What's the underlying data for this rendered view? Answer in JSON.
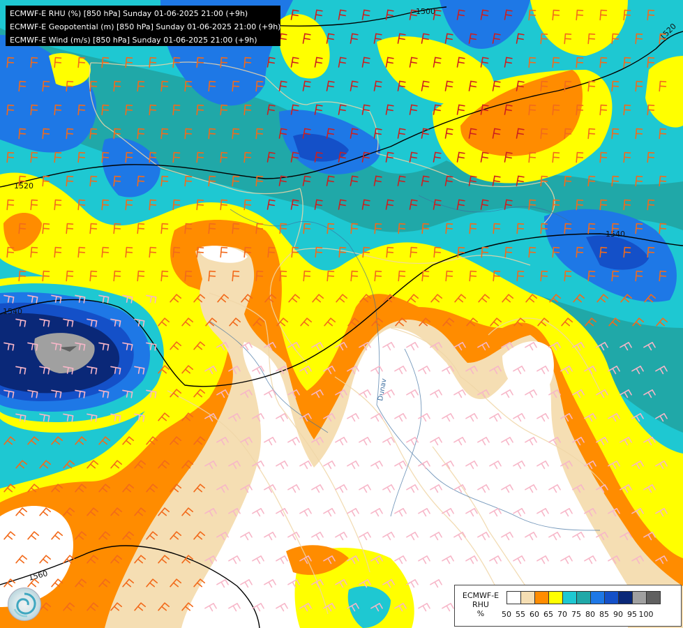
{
  "map": {
    "title_lines": [
      "ECMWF-E RHU (%) [850 hPa] Sunday 01-06-2025 21:00 (+9h)",
      "ECMWF-E Geopotential (m) [850 hPa] Sunday 01-06-2025 21:00 (+9h)",
      "ECMWF-E Wind (m/s) [850 hPa] Sunday 01-06-2025 21:00 (+9h)"
    ],
    "contour_labels": [
      "1500",
      "1520",
      "1520",
      "1540",
      "1540",
      "1560"
    ],
    "river_label": "Dunav"
  },
  "legend": {
    "label_lines": [
      "ECMWF-E",
      "RHU",
      "%"
    ],
    "ticks": [
      "50",
      "55",
      "60",
      "65",
      "70",
      "75",
      "80",
      "85",
      "90",
      "95",
      "100"
    ],
    "colors": [
      "#ffffff",
      "#f5deb3",
      "#ff8c00",
      "#ffff00",
      "#1ec8d2",
      "#20a8a8",
      "#1e78e6",
      "#1450c8",
      "#0a2878",
      "#a0a0a0",
      "#606060"
    ]
  },
  "colors": {
    "cyan": "#1ec8d2",
    "teal": "#20a8a8",
    "yellow": "#ffff00",
    "orange": "#ff8c00",
    "wheat": "#f5deb3",
    "white": "#ffffff",
    "blue": "#1e78e6",
    "mid_blue": "#1450c8",
    "navy": "#0a2878",
    "gray": "#a0a0a0",
    "barb_red": "#cc1f1f",
    "barb_orange": "#f26a1b",
    "barb_pink": "#f7b6c8"
  },
  "icons": {
    "logo": "ecmwf-swirl-logo"
  }
}
